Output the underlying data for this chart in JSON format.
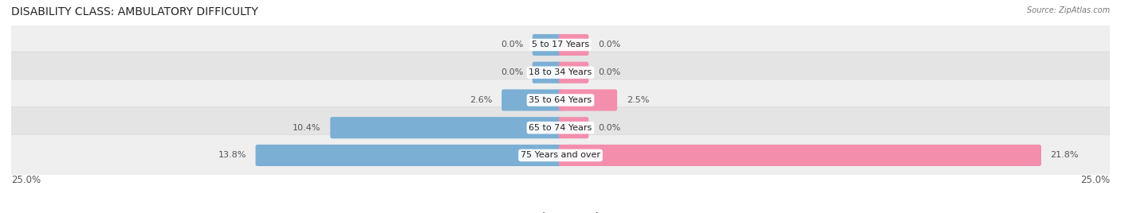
{
  "title": "DISABILITY CLASS: AMBULATORY DIFFICULTY",
  "source": "Source: ZipAtlas.com",
  "categories": [
    "5 to 17 Years",
    "18 to 34 Years",
    "35 to 64 Years",
    "65 to 74 Years",
    "75 Years and over"
  ],
  "male_values": [
    0.0,
    0.0,
    2.6,
    10.4,
    13.8
  ],
  "female_values": [
    0.0,
    0.0,
    2.5,
    0.0,
    21.8
  ],
  "max_val": 25.0,
  "min_bar_display": 1.2,
  "male_color": "#7bafd4",
  "female_color": "#f38fad",
  "row_bg_color_odd": "#efefef",
  "row_bg_color_even": "#e4e4e4",
  "row_bg_outline": "#d8d8d8",
  "label_color": "#555555",
  "title_fontsize": 10,
  "cat_fontsize": 8,
  "val_fontsize": 8,
  "axis_label_fontsize": 8.5,
  "legend_fontsize": 8.5,
  "background_color": "#ffffff"
}
